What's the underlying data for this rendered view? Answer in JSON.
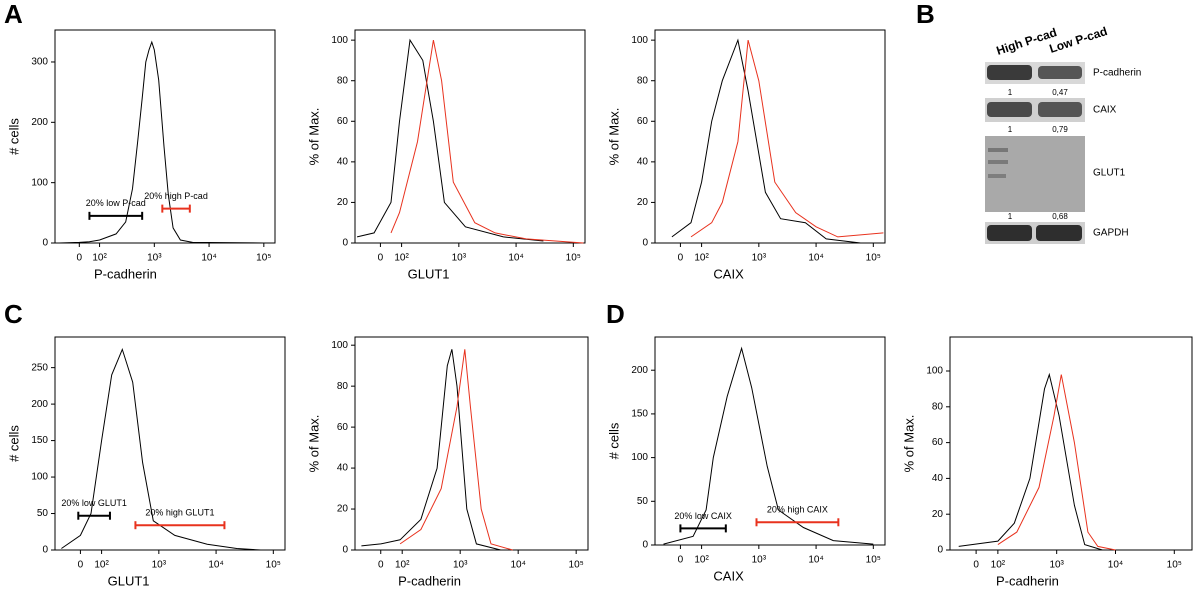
{
  "panels": [
    "A",
    "B",
    "C",
    "D"
  ],
  "blot": {
    "lanes": [
      "High P-cad",
      "Low P-cad"
    ],
    "rows": [
      {
        "label": "P-cadherin",
        "quant": [
          "1",
          "0,47"
        ]
      },
      {
        "label": "CAIX",
        "quant": [
          "1",
          "0,79"
        ]
      },
      {
        "label": "GLUT1",
        "quant": [
          "1",
          "0,68"
        ]
      },
      {
        "label": "GAPDH"
      }
    ]
  },
  "chart_data": [
    {
      "type": "line",
      "xlabel": "P-cadherin",
      "ylabel": "# cells",
      "xscale": "biexponential",
      "xlim": [
        -120,
        160000
      ],
      "ylim": [
        0,
        353
      ],
      "xticks": [
        0,
        {
          "value": 100,
          "label": "10²"
        },
        {
          "value": 1000,
          "label": "10³"
        },
        {
          "value": 10000,
          "label": "10⁴"
        },
        {
          "value": 100000,
          "label": "10⁵"
        }
      ],
      "yticks": [
        0,
        100,
        200,
        300
      ],
      "series": [
        {
          "color": "#000000",
          "x": [
            -100,
            0,
            50,
            100,
            200,
            300,
            400,
            500,
            600,
            700,
            800,
            900,
            1000,
            1200,
            1500,
            1800,
            2200,
            3000,
            5000,
            100000
          ],
          "values": [
            0,
            1,
            2,
            5,
            15,
            35,
            90,
            170,
            240,
            300,
            320,
            333,
            320,
            270,
            160,
            80,
            25,
            5,
            1,
            0
          ]
        }
      ],
      "gates": [
        {
          "label": "20% low P-cad",
          "x": [
            50,
            600
          ],
          "y": 45,
          "color": "#000000"
        },
        {
          "label": "20% high P-cad",
          "x": [
            1400,
            4450
          ],
          "y": 57,
          "color": "#e8321e"
        }
      ]
    },
    {
      "type": "line",
      "xlabel": "GLUT1",
      "ylabel": "% of Max.",
      "xscale": "biexponential",
      "xlim": [
        -120,
        160000
      ],
      "ylim": [
        0,
        105
      ],
      "xticks": [
        0,
        {
          "value": 100,
          "label": "10²"
        },
        {
          "value": 1000,
          "label": "10³"
        },
        {
          "value": 10000,
          "label": "10⁴"
        },
        {
          "value": 100000,
          "label": "10⁵"
        }
      ],
      "yticks": [
        0,
        20,
        40,
        60,
        80,
        100
      ],
      "series": [
        {
          "color": "#000000",
          "x": [
            -110,
            -30,
            50,
            90,
            140,
            235,
            360,
            560,
            1300,
            6000,
            30000
          ],
          "values": [
            3,
            5,
            20,
            60,
            100,
            90,
            60,
            20,
            8,
            3,
            1
          ]
        },
        {
          "color": "#e8321e",
          "x": [
            50,
            90,
            190,
            360,
            500,
            800,
            1900,
            4300,
            15000,
            150000
          ],
          "values": [
            5,
            15,
            50,
            100,
            80,
            30,
            10,
            5,
            2,
            0
          ]
        }
      ]
    },
    {
      "type": "line",
      "xlabel": "CAIX",
      "ylabel": "% of Max.",
      "xscale": "biexponential",
      "xlim": [
        -120,
        160000
      ],
      "ylim": [
        0,
        105
      ],
      "xticks": [
        0,
        {
          "value": 100,
          "label": "10²"
        },
        {
          "value": 1000,
          "label": "10³"
        },
        {
          "value": 10000,
          "label": "10⁴"
        },
        {
          "value": 100000,
          "label": "10⁵"
        }
      ],
      "yticks": [
        0,
        20,
        40,
        60,
        80,
        100
      ],
      "series": [
        {
          "color": "#000000",
          "x": [
            -40,
            50,
            100,
            150,
            230,
            430,
            650,
            1300,
            2400,
            6500,
            15000,
            60000
          ],
          "values": [
            3,
            10,
            30,
            60,
            80,
            100,
            75,
            25,
            12,
            10,
            2,
            0
          ]
        },
        {
          "color": "#e8321e",
          "x": [
            50,
            150,
            230,
            430,
            650,
            1000,
            1900,
            4400,
            10000,
            24000,
            150000
          ],
          "values": [
            3,
            10,
            20,
            50,
            100,
            80,
            30,
            15,
            8,
            3,
            5
          ]
        }
      ]
    },
    {
      "type": "line",
      "xlabel": "GLUT1",
      "ylabel": "# cells",
      "xscale": "biexponential",
      "xlim": [
        -120,
        160000
      ],
      "ylim": [
        0,
        292
      ],
      "xticks": [
        0,
        {
          "value": 100,
          "label": "10²"
        },
        {
          "value": 1000,
          "label": "10³"
        },
        {
          "value": 10000,
          "label": "10⁴"
        },
        {
          "value": 100000,
          "label": "10⁵"
        }
      ],
      "yticks": [
        0,
        50,
        100,
        150,
        200,
        250
      ],
      "series": [
        {
          "color": "#000000",
          "x": [
            -90,
            0,
            50,
            100,
            150,
            230,
            350,
            520,
            800,
            1900,
            7000,
            23000,
            60000
          ],
          "values": [
            2,
            20,
            50,
            150,
            240,
            275,
            230,
            120,
            40,
            20,
            8,
            2,
            0
          ]
        }
      ],
      "gates": [
        {
          "label": "20% low GLUT1",
          "x": [
            -10,
            140
          ],
          "y": 47,
          "color": "#000000"
        },
        {
          "label": "20% high GLUT1",
          "x": [
            390,
            14000
          ],
          "y": 34,
          "color": "#e8321e"
        }
      ]
    },
    {
      "type": "line",
      "xlabel": "P-cadherin",
      "ylabel": "% of Max.",
      "xscale": "biexponential",
      "xlim": [
        -120,
        160000
      ],
      "ylim": [
        0,
        104
      ],
      "xticks": [
        0,
        {
          "value": 100,
          "label": "10²"
        },
        {
          "value": 1000,
          "label": "10³"
        },
        {
          "value": 10000,
          "label": "10⁴"
        },
        {
          "value": 100000,
          "label": "10⁵"
        }
      ],
      "yticks": [
        0,
        20,
        40,
        60,
        80,
        100
      ],
      "series": [
        {
          "color": "#000000",
          "x": [
            -90,
            0,
            90,
            210,
            400,
            600,
            720,
            880,
            1300,
            1900,
            5000
          ],
          "values": [
            2,
            3,
            5,
            15,
            40,
            90,
            98,
            80,
            20,
            3,
            0
          ]
        },
        {
          "color": "#e8321e",
          "x": [
            90,
            210,
            470,
            880,
            1200,
            1500,
            2300,
            3400,
            8000
          ],
          "values": [
            3,
            10,
            30,
            70,
            98,
            70,
            20,
            3,
            0
          ]
        }
      ]
    },
    {
      "type": "line",
      "xlabel": "CAIX",
      "ylabel": "# cells",
      "xscale": "biexponential",
      "xlim": [
        -120,
        160000
      ],
      "ylim": [
        0,
        238
      ],
      "xticks": [
        0,
        {
          "value": 100,
          "label": "10²"
        },
        {
          "value": 1000,
          "label": "10³"
        },
        {
          "value": 10000,
          "label": "10⁴"
        },
        {
          "value": 100000,
          "label": "10⁵"
        }
      ],
      "yticks": [
        0,
        50,
        100,
        150,
        200
      ],
      "series": [
        {
          "color": "#000000",
          "x": [
            -80,
            60,
            120,
            160,
            280,
            500,
            750,
            1400,
            2200,
            6000,
            20000,
            100000
          ],
          "values": [
            1,
            10,
            40,
            100,
            170,
            225,
            180,
            90,
            40,
            20,
            5,
            1
          ]
        }
      ],
      "gates": [
        {
          "label": "20% low CAIX",
          "x": [
            0,
            265
          ],
          "y": 19,
          "color": "#000000"
        },
        {
          "label": "20% high CAIX",
          "x": [
            910,
            24500
          ],
          "y": 26,
          "color": "#e8321e"
        }
      ]
    },
    {
      "type": "line",
      "xlabel": "P-cadherin",
      "ylabel": "% of Max.",
      "xscale": "biexponential",
      "xlim": [
        -120,
        200000
      ],
      "ylim": [
        0,
        119
      ],
      "xticks": [
        0,
        {
          "value": 100,
          "label": "10²"
        },
        {
          "value": 1000,
          "label": "10³"
        },
        {
          "value": 10000,
          "label": "10⁴"
        },
        {
          "value": 100000,
          "label": "10⁵"
        }
      ],
      "yticks": [
        0,
        20,
        40,
        60,
        80,
        100
      ],
      "series": [
        {
          "color": "#000000",
          "x": [
            -80,
            100,
            190,
            350,
            620,
            750,
            1100,
            2000,
            3000,
            6000
          ],
          "values": [
            2,
            5,
            15,
            40,
            90,
            98,
            75,
            25,
            3,
            0
          ]
        },
        {
          "color": "#e8321e",
          "x": [
            100,
            210,
            500,
            900,
            1200,
            2000,
            3400,
            5000,
            10000
          ],
          "values": [
            3,
            10,
            35,
            75,
            98,
            60,
            10,
            2,
            0
          ]
        }
      ]
    }
  ]
}
